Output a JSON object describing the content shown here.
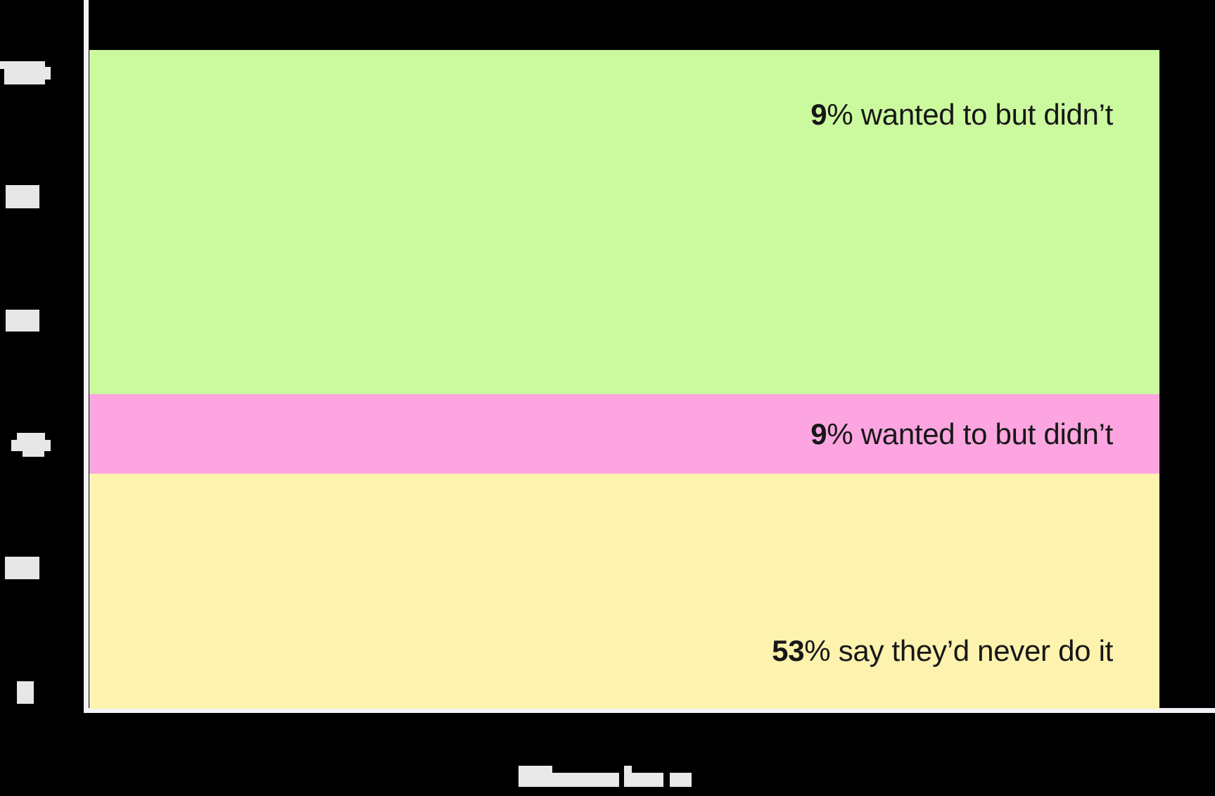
{
  "chart_data": {
    "type": "bar",
    "subtype": "single_stacked_column_full_width",
    "title": "",
    "background_color": "#000000",
    "axis_color": "#f3f1f6",
    "label_text_color": "#171717",
    "segments": [
      {
        "position": "top",
        "value": 9,
        "value_label": "9",
        "text": "% wanted to but didn’t",
        "color": "#cbfa9e",
        "approx_rendered_height_pct": 52.2
      },
      {
        "position": "middle",
        "value": 9,
        "value_label": "9",
        "text": "% wanted to but didn’t",
        "color": "#fca5e0",
        "approx_rendered_height_pct": 12.1
      },
      {
        "position": "bottom",
        "value": 53,
        "value_label": "53",
        "text": "% say they’d never do it",
        "color": "#fdf2ae",
        "approx_rendered_height_pct": 35.7
      }
    ],
    "y_axis": {
      "tick_count": 6,
      "tick_labels_legible": false,
      "tick_label_color": "#e7e7e7"
    },
    "x_axis": {
      "label_legible": false,
      "label_color": "#e9e9e9"
    },
    "legend_position": "none",
    "grid": false
  }
}
